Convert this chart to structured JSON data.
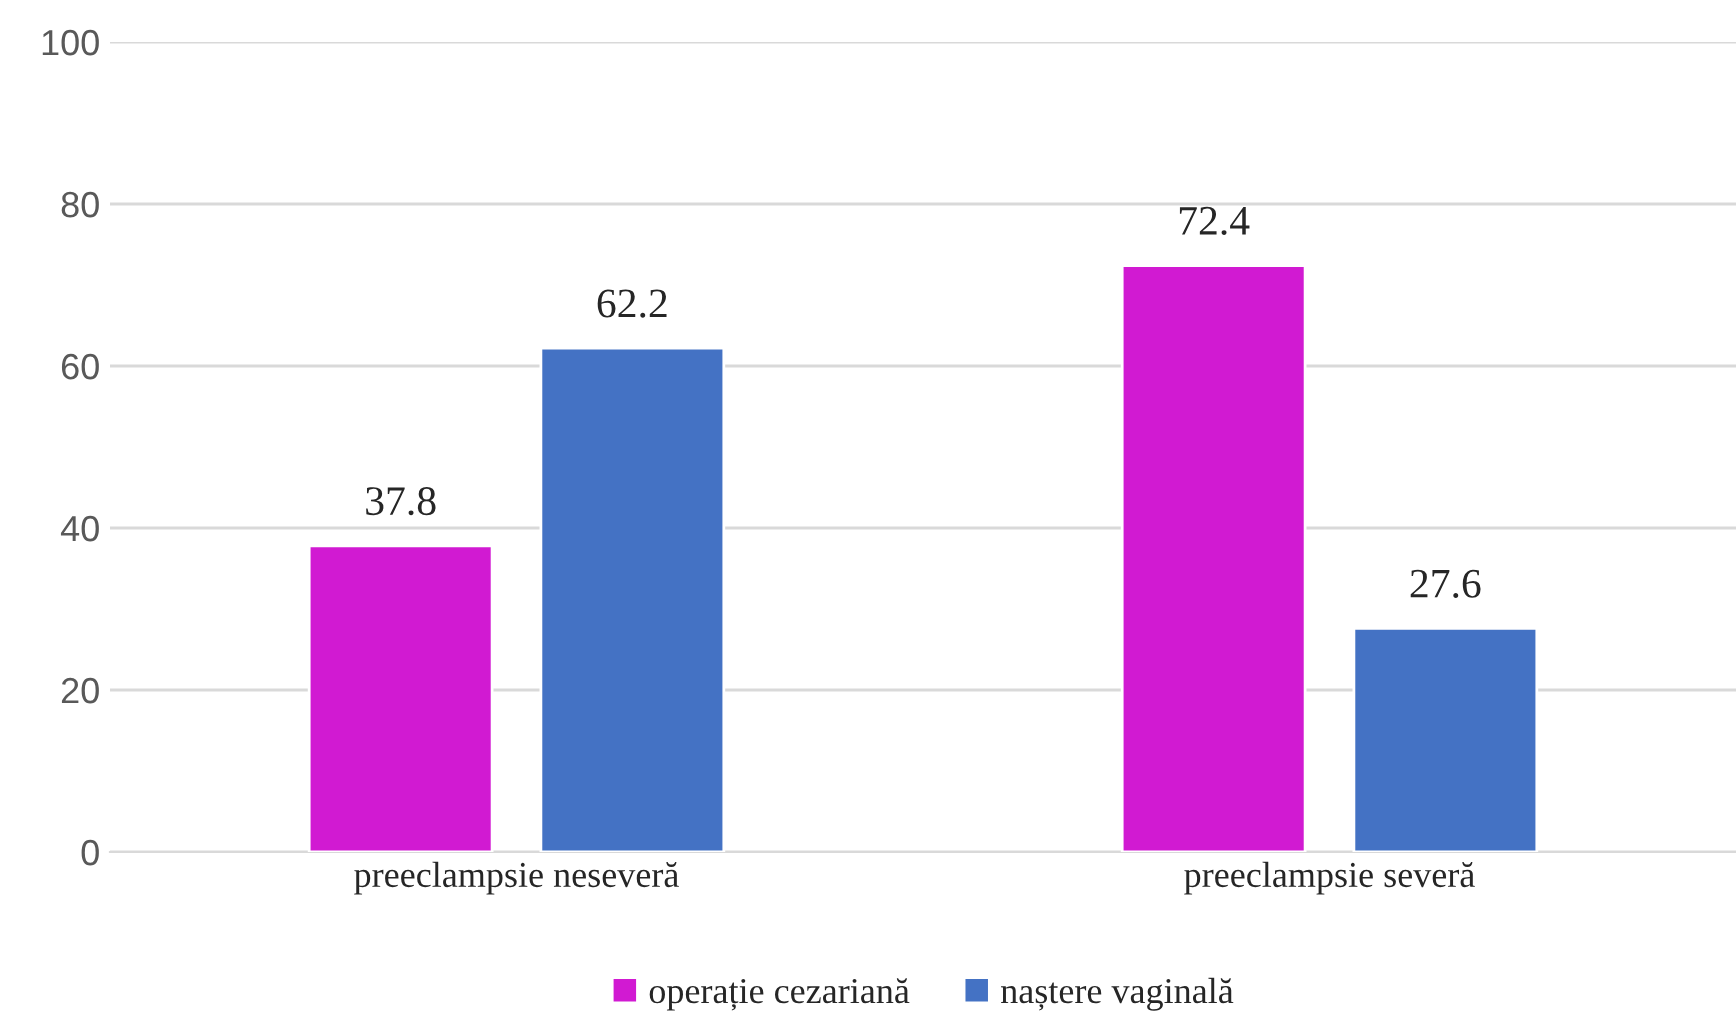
{
  "chart_data": {
    "type": "bar",
    "categories": [
      "preeclampsie neseveră",
      "preeclampsie severă"
    ],
    "series": [
      {
        "name": "operație cezariană",
        "color": "#d11ad2",
        "values": [
          37.8,
          72.4
        ]
      },
      {
        "name": "naștere vaginală",
        "color": "#4472c4",
        "values": [
          62.2,
          27.6
        ]
      }
    ],
    "ylim": [
      0,
      100
    ],
    "yticks": [
      0,
      20,
      40,
      60,
      80,
      100
    ],
    "grid": "y",
    "legend": "bottom",
    "data_labels": true
  }
}
